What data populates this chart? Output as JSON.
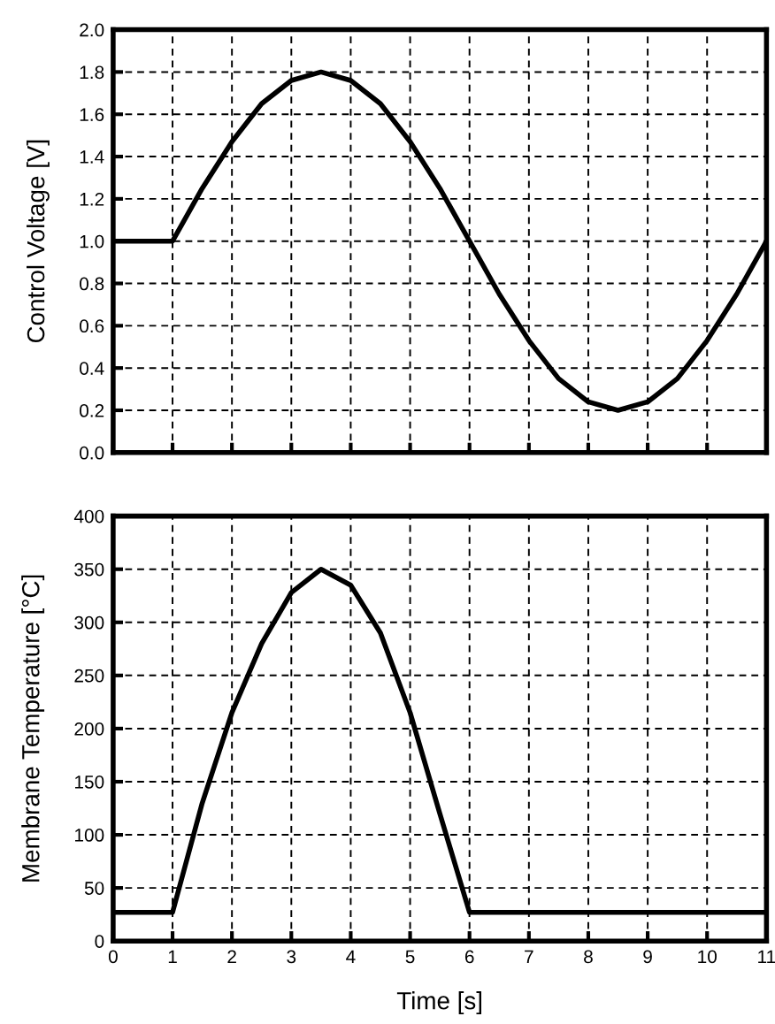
{
  "chart_data": [
    {
      "type": "line",
      "ylabel": "Control Voltage [V]",
      "xlim": [
        0,
        11
      ],
      "xticks": [
        0,
        1,
        2,
        3,
        4,
        5,
        6,
        7,
        8,
        9,
        10,
        11
      ],
      "ylim": [
        0,
        2.0
      ],
      "yticks": [
        {
          "value": 0,
          "label": "0.0"
        },
        {
          "value": 0.2,
          "label": "0.2"
        },
        {
          "value": 0.4,
          "label": "0.4"
        },
        {
          "value": 0.6,
          "label": "0.6"
        },
        {
          "value": 0.8,
          "label": "0.8"
        },
        {
          "value": 1.0,
          "label": "1.0"
        },
        {
          "value": 1.2,
          "label": "1.2"
        },
        {
          "value": 1.4,
          "label": "1.4"
        },
        {
          "value": 1.6,
          "label": "1.6"
        },
        {
          "value": 1.8,
          "label": "1.8"
        },
        {
          "value": 2.0,
          "label": "2.0"
        }
      ],
      "tick_labels": "y",
      "grid": true,
      "marker": "none",
      "line_style": "solid",
      "series": [
        {
          "color": "#000000",
          "x": [
            0,
            1,
            1.5,
            2,
            2.5,
            3,
            3.5,
            4,
            4.5,
            5,
            5.5,
            6,
            6.5,
            7,
            7.5,
            8,
            8.5,
            9,
            9.5,
            10,
            10.5,
            11
          ],
          "values": [
            1.0,
            1.0,
            1.25,
            1.47,
            1.65,
            1.76,
            1.8,
            1.76,
            1.65,
            1.47,
            1.25,
            1.0,
            0.75,
            0.53,
            0.35,
            0.24,
            0.2,
            0.24,
            0.35,
            0.53,
            0.75,
            1.0
          ]
        }
      ]
    },
    {
      "type": "line",
      "xlabel": "Time [s]",
      "ylabel": "Membrane Temperature [°C]",
      "xlim": [
        0,
        11
      ],
      "xticks": [
        0,
        1,
        2,
        3,
        4,
        5,
        6,
        7,
        8,
        9,
        10,
        11
      ],
      "ylim": [
        0,
        400
      ],
      "yticks": [
        0,
        50,
        100,
        150,
        200,
        250,
        300,
        350,
        400
      ],
      "grid": true,
      "marker": "none",
      "line_style": "solid",
      "series": [
        {
          "color": "#000000",
          "x": [
            0,
            1,
            1.5,
            2,
            2.5,
            3,
            3.5,
            4,
            4.5,
            5,
            5.5,
            6,
            7,
            8,
            9,
            10,
            11
          ],
          "values": [
            27,
            27,
            130,
            215,
            280,
            328,
            350,
            335,
            290,
            215,
            120,
            27,
            27,
            27,
            27,
            27,
            27
          ]
        }
      ]
    }
  ]
}
